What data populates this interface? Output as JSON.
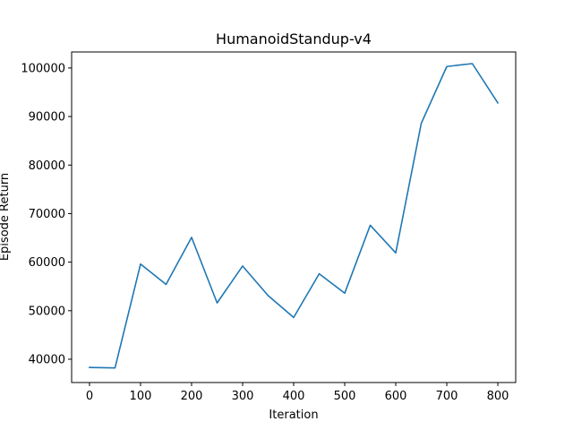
{
  "chart_data": {
    "type": "line",
    "title": "HumanoidStandup-v4",
    "xlabel": "Iteration",
    "ylabel": "Episode Return",
    "xlim": [
      -35,
      835
    ],
    "ylim": [
      35200,
      103300
    ],
    "xticks": [
      0,
      100,
      200,
      300,
      400,
      500,
      600,
      700,
      800
    ],
    "xtick_labels": [
      "0",
      "100",
      "200",
      "300",
      "400",
      "500",
      "600",
      "700",
      "800"
    ],
    "yticks": [
      40000,
      50000,
      60000,
      70000,
      80000,
      90000,
      100000
    ],
    "ytick_labels": [
      "40000",
      "50000",
      "60000",
      "70000",
      "80000",
      "90000",
      "100000"
    ],
    "grid": false,
    "legend": "none",
    "series": [
      {
        "color": "#1f77b4",
        "x": [
          0,
          50,
          100,
          150,
          200,
          250,
          300,
          350,
          400,
          450,
          500,
          550,
          600,
          650,
          700,
          750,
          800
        ],
        "y": [
          38300,
          38200,
          59600,
          55400,
          65100,
          51600,
          59200,
          53100,
          48600,
          57600,
          53600,
          67600,
          61900,
          88600,
          100300,
          100900,
          92800
        ]
      }
    ]
  }
}
